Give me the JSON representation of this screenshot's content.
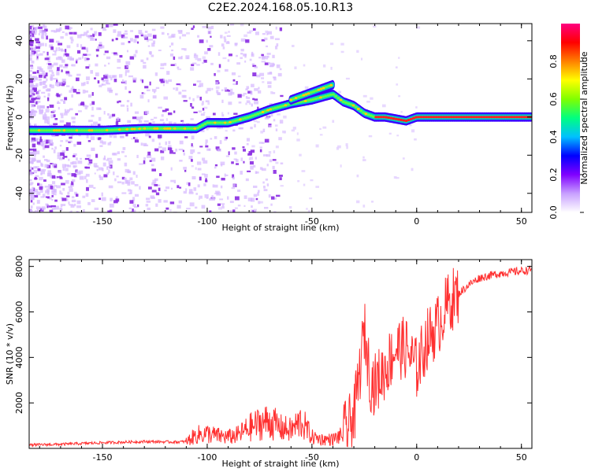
{
  "title": "C2E2.2024.168.05.10.R13",
  "chart_data": [
    {
      "type": "heatmap",
      "xlabel": "Height of straight line (km)",
      "ylabel": "Frequency (Hz)",
      "xlim": [
        -185,
        55
      ],
      "ylim": [
        -50,
        49
      ],
      "x_ticks": [
        -150,
        -100,
        -50,
        0,
        50
      ],
      "y_ticks": [
        -40,
        -20,
        0,
        20,
        40
      ],
      "x_tick_labels": [
        "-150",
        "-100",
        "-50",
        "0",
        "50"
      ],
      "y_tick_labels": [
        "-40",
        "-20",
        "0",
        "20",
        "40"
      ],
      "colorbar": {
        "label": "Normalized spectral amplitude",
        "range": [
          0,
          1
        ],
        "ticks": [
          0.0,
          0.2,
          0.4,
          0.6,
          0.8
        ],
        "tick_labels": [
          "0.0",
          "0.2",
          "0.4",
          "0.6",
          "0.8"
        ],
        "colors": [
          "#ffffff",
          "#c8a0ff",
          "#8000ff",
          "#0000ff",
          "#00c0ff",
          "#00ff80",
          "#80ff00",
          "#ffff00",
          "#ff8000",
          "#ff0000",
          "#ff0080"
        ]
      },
      "ridge": {
        "x": [
          -185,
          -170,
          -150,
          -130,
          -115,
          -105,
          -100,
          -90,
          -80,
          -70,
          -60,
          -50,
          -40,
          -35,
          -30,
          -25,
          -20,
          -15,
          -10,
          -5,
          0,
          5,
          10,
          20,
          30,
          40,
          55
        ],
        "y": [
          -7,
          -7,
          -7,
          -6,
          -6,
          -6,
          -3,
          -3,
          0,
          4,
          7,
          9,
          12,
          8,
          6,
          2,
          0,
          0,
          -1,
          -2,
          0,
          0,
          0,
          0,
          0,
          0,
          0
        ]
      },
      "ridge_secondary": {
        "x": [
          -60,
          -55,
          -50,
          -45,
          -40
        ],
        "y": [
          9,
          11,
          13,
          15,
          17
        ]
      }
    },
    {
      "type": "line",
      "xlabel": "Height of straight line (km)",
      "ylabel": "SNR (10 * v/v)",
      "xlim": [
        -185,
        55
      ],
      "ylim": [
        0,
        8300
      ],
      "x_ticks": [
        -150,
        -100,
        -50,
        0,
        50
      ],
      "y_ticks": [
        2000,
        4000,
        6000,
        8000
      ],
      "x_tick_labels": [
        "-150",
        "-100",
        "-50",
        "0",
        "50"
      ],
      "y_tick_labels": [
        "2000",
        "4000",
        "6000",
        "8000"
      ],
      "series": [
        {
          "color": "#ff3030",
          "x": [
            -185,
            -170,
            -150,
            -130,
            -115,
            -110,
            -105,
            -100,
            -95,
            -90,
            -85,
            -80,
            -75,
            -70,
            -65,
            -60,
            -55,
            -50,
            -45,
            -40,
            -35,
            -30,
            -27,
            -25,
            -22,
            -20,
            -15,
            -10,
            -5,
            0,
            5,
            10,
            15,
            20,
            25,
            30,
            35,
            40,
            45,
            50,
            55
          ],
          "y": [
            150,
            180,
            250,
            300,
            280,
            300,
            600,
            650,
            550,
            500,
            600,
            900,
            1100,
            1200,
            900,
            800,
            1200,
            500,
            400,
            400,
            600,
            1300,
            3500,
            5200,
            3000,
            2800,
            3500,
            4400,
            4400,
            3500,
            4800,
            5400,
            6400,
            6800,
            7200,
            7500,
            7600,
            7700,
            7750,
            7800,
            7850
          ]
        }
      ]
    }
  ]
}
